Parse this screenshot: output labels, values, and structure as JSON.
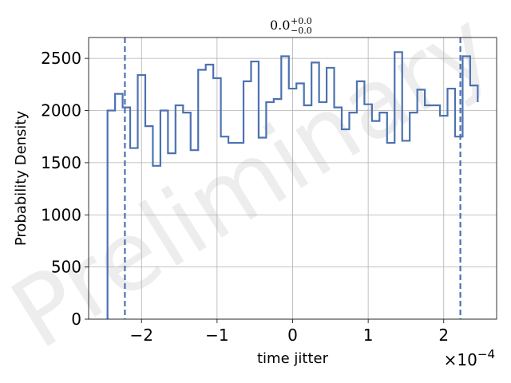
{
  "chart_data": {
    "type": "histogram",
    "title": {
      "base": "0.0",
      "sup": "+0.0",
      "sub": "−0.0"
    },
    "xlabel": "time jitter",
    "ylabel": "Probability Density",
    "x_offset_text": {
      "base": "×10",
      "exp": "−4"
    },
    "x_scale": 0.0001,
    "xlim": [
      -2.7,
      2.7
    ],
    "ylim": [
      0,
      2700
    ],
    "x_ticks": [
      -2,
      -1,
      0,
      1,
      2
    ],
    "x_tick_labels": [
      "−2",
      "−1",
      "0",
      "1",
      "2"
    ],
    "y_ticks": [
      0,
      500,
      1000,
      1500,
      2000,
      2500
    ],
    "y_tick_labels": [
      "0",
      "500",
      "1000",
      "1500",
      "2000",
      "2500"
    ],
    "grid": true,
    "series_color": "#4c72b0",
    "bin_edges": [
      -2.45,
      -2.35,
      -2.25,
      -2.15,
      -2.05,
      -1.95,
      -1.85,
      -1.75,
      -1.65,
      -1.55,
      -1.45,
      -1.35,
      -1.25,
      -1.15,
      -1.05,
      -0.95,
      -0.85,
      -0.75,
      -0.65,
      -0.55,
      -0.45,
      -0.35,
      -0.25,
      -0.15,
      -0.05,
      0.05,
      0.15,
      0.25,
      0.35,
      0.45,
      0.55,
      0.65,
      0.75,
      0.85,
      0.95,
      1.05,
      1.15,
      1.25,
      1.35,
      1.45,
      1.55,
      1.65,
      1.75,
      1.85,
      1.95,
      2.05,
      2.15,
      2.25,
      2.35,
      2.45
    ],
    "values": [
      2000,
      2160,
      2030,
      1640,
      2340,
      1850,
      1470,
      2000,
      1590,
      2050,
      1980,
      1620,
      2390,
      2440,
      2310,
      1750,
      1690,
      1690,
      2280,
      2470,
      1740,
      2080,
      2110,
      2520,
      2210,
      2260,
      2050,
      2460,
      2080,
      2410,
      2030,
      1820,
      1980,
      2280,
      2060,
      1900,
      1980,
      1690,
      2560,
      1710,
      1980,
      2200,
      2050,
      2050,
      1950,
      2210,
      1750,
      2520,
      2240,
      2080
    ],
    "vlines": [
      -2.22,
      2.22
    ],
    "watermark": "Preliminary"
  }
}
